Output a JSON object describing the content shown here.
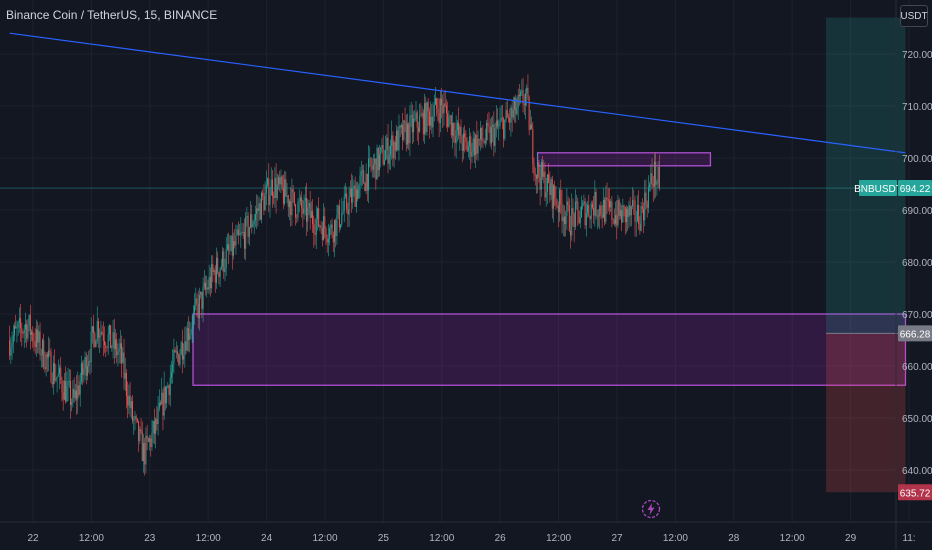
{
  "header": {
    "title": "Binance Coin / TetherUS, 15, BINANCE",
    "unit_button": "USDT"
  },
  "icons": {
    "replay": "lightning-icon"
  },
  "colors": {
    "background": "#131722",
    "grid": "#1e222d",
    "up": "#26a69a",
    "down": "#ef5350",
    "trendline": "#2962ff",
    "zone": "#9c27b0",
    "price_line": "#26a69a",
    "target": "#26a69a",
    "stop": "#ef5350"
  },
  "chart_data": {
    "type": "candlestick",
    "symbol": "BNBUSDT",
    "title": "Binance Coin / TetherUS, 15, BINANCE",
    "x_tick_labels": [
      "22",
      "12:00",
      "23",
      "12:00",
      "24",
      "12:00",
      "25",
      "12:00",
      "26",
      "12:00",
      "27",
      "12:00",
      "28",
      "12:00",
      "29",
      "11:"
    ],
    "y_tick_labels": [
      640,
      650,
      660,
      670,
      680,
      690,
      700,
      710,
      720
    ],
    "ylim": [
      633,
      727
    ],
    "current_price": {
      "label": "BNBUSDT",
      "value": "694.22"
    },
    "target_label": "666.28",
    "stop_label": "635.72",
    "price_path": [
      {
        "day": 21.8,
        "price": 665
      },
      {
        "day": 21.95,
        "price": 668
      },
      {
        "day": 22.15,
        "price": 660
      },
      {
        "day": 22.35,
        "price": 653
      },
      {
        "day": 22.55,
        "price": 668
      },
      {
        "day": 22.75,
        "price": 662
      },
      {
        "day": 22.85,
        "price": 650
      },
      {
        "day": 22.95,
        "price": 643
      },
      {
        "day": 23.05,
        "price": 648
      },
      {
        "day": 23.2,
        "price": 660
      },
      {
        "day": 23.35,
        "price": 668
      },
      {
        "day": 23.55,
        "price": 678
      },
      {
        "day": 23.8,
        "price": 685
      },
      {
        "day": 24.05,
        "price": 695
      },
      {
        "day": 24.3,
        "price": 690
      },
      {
        "day": 24.55,
        "price": 686
      },
      {
        "day": 24.8,
        "price": 695
      },
      {
        "day": 25.05,
        "price": 702
      },
      {
        "day": 25.25,
        "price": 706
      },
      {
        "day": 25.5,
        "price": 710
      },
      {
        "day": 25.7,
        "price": 702
      },
      {
        "day": 25.9,
        "price": 704
      },
      {
        "day": 26.1,
        "price": 708
      },
      {
        "day": 26.22,
        "price": 712
      },
      {
        "day": 26.3,
        "price": 698
      },
      {
        "day": 26.45,
        "price": 693
      },
      {
        "day": 26.6,
        "price": 688
      },
      {
        "day": 26.8,
        "price": 691
      },
      {
        "day": 27.0,
        "price": 689
      },
      {
        "day": 27.2,
        "price": 689
      },
      {
        "day": 27.32,
        "price": 697
      },
      {
        "day": 27.38,
        "price": 694
      }
    ],
    "trendline": {
      "start": {
        "day": 21.8,
        "price": 724
      },
      "end": {
        "day": 29.47,
        "price": 701
      }
    },
    "zones": [
      {
        "from_day": 26.32,
        "to_day": 27.8,
        "high": 701,
        "low": 698.5
      },
      {
        "from_day": 23.37,
        "to_day": 29.47,
        "high": 670,
        "low": 656.3
      }
    ],
    "position": {
      "from_day": 28.79,
      "to_day": 29.47,
      "top": 727,
      "entry": 666.28,
      "stop": 635.72
    }
  }
}
